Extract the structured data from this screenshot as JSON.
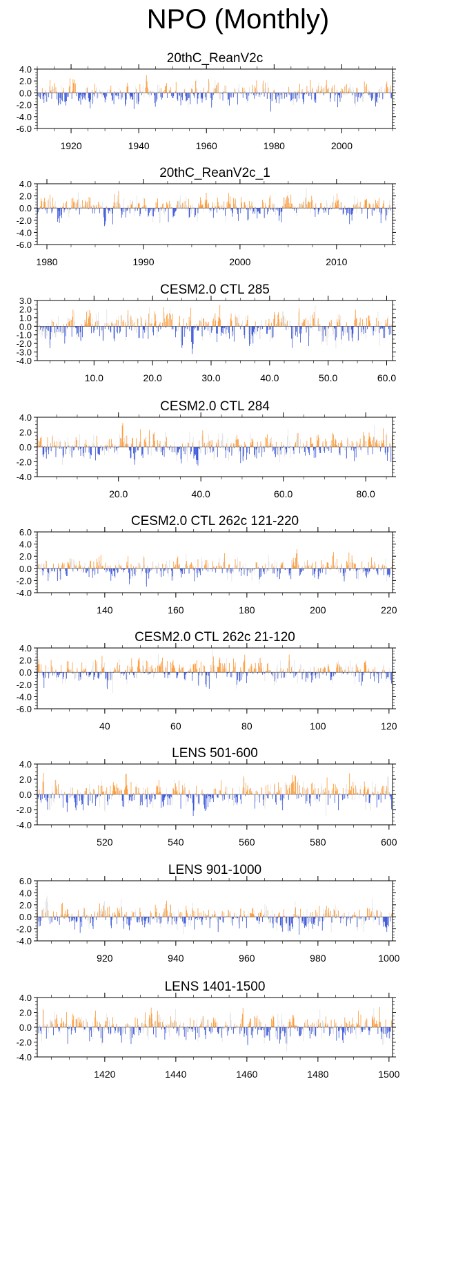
{
  "title": "NPO (Monthly)",
  "colors": {
    "positive": "#ff8c1a",
    "negative": "#1f3fd6",
    "axis": "#000000"
  },
  "chart_data": [
    {
      "type": "bar",
      "title": "20thC_ReanV2c",
      "xlim": [
        1910,
        2015
      ],
      "ylim": [
        -6,
        4
      ],
      "yticks": [
        4,
        2,
        0,
        -2,
        -4,
        -6
      ],
      "ytick_labels": [
        "4.0",
        "2.0",
        "0.0",
        "-2.0",
        "-4.0",
        "-6.0"
      ],
      "xticks": [
        1920,
        1940,
        1960,
        1980,
        2000
      ],
      "xtick_labels": [
        "1920",
        "1940",
        "1960",
        "1980",
        "2000"
      ],
      "amp": 1.0,
      "seed": 11
    },
    {
      "type": "bar",
      "title": "20thC_ReanV2c_1",
      "xlim": [
        1979,
        2015.8
      ],
      "ylim": [
        -6,
        4
      ],
      "yticks": [
        4,
        2,
        0,
        -2,
        -4,
        -6
      ],
      "ytick_labels": [
        "4.0",
        "2.0",
        "0.0",
        "-2.0",
        "-4.0",
        "-6.0"
      ],
      "xticks": [
        1980,
        1990,
        2000,
        2010
      ],
      "xtick_labels": [
        "1980",
        "1990",
        "2000",
        "2010"
      ],
      "amp": 1.0,
      "seed": 23
    },
    {
      "type": "bar",
      "title": "CESM2.0 CTL 285",
      "xlim": [
        0.3,
        61
      ],
      "ylim": [
        -4,
        3
      ],
      "yticks": [
        3,
        2,
        1,
        0,
        -1,
        -2,
        -3,
        -4
      ],
      "ytick_labels": [
        "3.0",
        "2.0",
        "1.0",
        "0.0",
        "-1.0",
        "-2.0",
        "-3.0",
        "-4.0"
      ],
      "xticks": [
        10,
        20,
        30,
        40,
        50,
        60
      ],
      "xtick_labels": [
        "10.0",
        "20.0",
        "30.0",
        "40.0",
        "50.0",
        "60.0"
      ],
      "amp": 1.0,
      "seed": 37
    },
    {
      "type": "bar",
      "title": "CESM2.0 CTL 284",
      "xlim": [
        0.3,
        86.5
      ],
      "ylim": [
        -4,
        4
      ],
      "yticks": [
        4,
        2,
        0,
        -2,
        -4
      ],
      "ytick_labels": [
        "4.0",
        "2.0",
        "0.0",
        "-2.0",
        "-4.0"
      ],
      "xticks": [
        20,
        40,
        60,
        80
      ],
      "xtick_labels": [
        "20.0",
        "40.0",
        "60.0",
        "80.0"
      ],
      "amp": 1.0,
      "seed": 41
    },
    {
      "type": "bar",
      "title": "CESM2.0 CTL 262c 121-220",
      "xlim": [
        121,
        221
      ],
      "ylim": [
        -4,
        6
      ],
      "yticks": [
        6,
        4,
        2,
        0,
        -2,
        -4
      ],
      "ytick_labels": [
        "6.0",
        "4.0",
        "2.0",
        "0.0",
        "-2.0",
        "-4.0"
      ],
      "xticks": [
        140,
        160,
        180,
        200,
        220
      ],
      "xtick_labels": [
        "140",
        "160",
        "180",
        "200",
        "220"
      ],
      "amp": 1.0,
      "seed": 53
    },
    {
      "type": "bar",
      "title": "CESM2.0 CTL 262c 21-120",
      "xlim": [
        21,
        121
      ],
      "ylim": [
        -6,
        4
      ],
      "yticks": [
        4,
        2,
        0,
        -2,
        -4,
        -6
      ],
      "ytick_labels": [
        "4.0",
        "2.0",
        "0.0",
        "-2.0",
        "-4.0",
        "-6.0"
      ],
      "xticks": [
        40,
        60,
        80,
        100,
        120
      ],
      "xtick_labels": [
        "40",
        "60",
        "80",
        "100",
        "120"
      ],
      "amp": 1.0,
      "seed": 67
    },
    {
      "type": "bar",
      "title": "LENS 501-600",
      "xlim": [
        501,
        601
      ],
      "ylim": [
        -4,
        4
      ],
      "yticks": [
        4,
        2,
        0,
        -2,
        -4
      ],
      "ytick_labels": [
        "4.0",
        "2.0",
        "0.0",
        "-2.0",
        "-4.0"
      ],
      "xticks": [
        520,
        540,
        560,
        580,
        600
      ],
      "xtick_labels": [
        "520",
        "540",
        "560",
        "580",
        "600"
      ],
      "amp": 1.0,
      "seed": 71
    },
    {
      "type": "bar",
      "title": "LENS 901-1000",
      "xlim": [
        901,
        1001
      ],
      "ylim": [
        -4,
        6
      ],
      "yticks": [
        6,
        4,
        2,
        0,
        -2,
        -4
      ],
      "ytick_labels": [
        "6.0",
        "4.0",
        "2.0",
        "0.0",
        "-2.0",
        "-4.0"
      ],
      "xticks": [
        920,
        940,
        960,
        980,
        1000
      ],
      "xtick_labels": [
        "920",
        "940",
        "960",
        "980",
        "1000"
      ],
      "amp": 1.0,
      "seed": 83
    },
    {
      "type": "bar",
      "title": "LENS 1401-1500",
      "xlim": [
        1401,
        1501
      ],
      "ylim": [
        -4,
        4
      ],
      "yticks": [
        4,
        2,
        0,
        -2,
        -4
      ],
      "ytick_labels": [
        "4.0",
        "2.0",
        "0.0",
        "-2.0",
        "-4.0"
      ],
      "xticks": [
        1420,
        1440,
        1460,
        1480,
        1500
      ],
      "xtick_labels": [
        "1420",
        "1440",
        "1460",
        "1480",
        "1500"
      ],
      "amp": 1.0,
      "seed": 97
    }
  ]
}
